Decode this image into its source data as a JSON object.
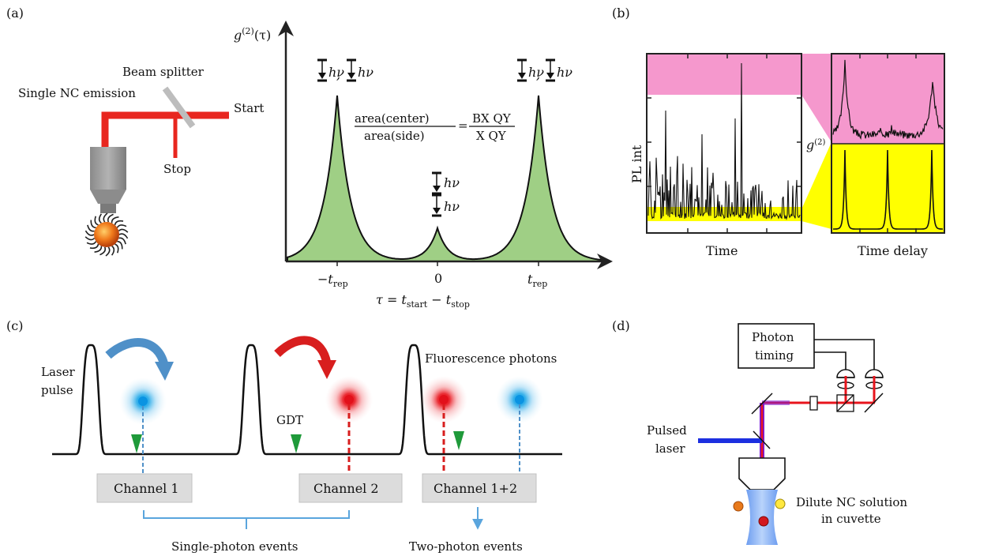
{
  "panel_labels": {
    "a": "(a)",
    "b": "(b)",
    "c": "(c)",
    "d": "(d)"
  },
  "panel_a": {
    "beam_splitter": "Beam splitter",
    "single_nc_emission": "Single NC emission",
    "start": "Start",
    "stop": "Stop",
    "y_axis_g": "g",
    "y_axis_sup": "(2)",
    "y_axis_tau": "(τ)",
    "photon_label": "hν",
    "ratio_num_left": "area(center)",
    "ratio_den_left": "area(side)",
    "ratio_num_right": "BX QY",
    "ratio_den_right": "X QY",
    "ratio_eq": "=",
    "tick_minus": "−t",
    "tick_zero": "0",
    "tick_plus": "t",
    "tick_sub": "rep",
    "x_axis_tau": "τ = t",
    "x_axis_sub1": "start",
    "x_axis_minus": " − t",
    "x_axis_sub2": "stop"
  },
  "panel_b": {
    "ylabel": "PL int",
    "xlabel_left": "Time",
    "xlabel_right": "Time delay",
    "g2_g": "g",
    "g2_sup": "(2)",
    "colors": {
      "pink": "#f598cd",
      "yellow": "#ffff00"
    }
  },
  "panel_c": {
    "laser_pulse_1": "Laser",
    "laser_pulse_2": "pulse",
    "gdt": "GDT",
    "fluorescence": "Fluorescence photons",
    "channel1": "Channel 1",
    "channel2": "Channel 2",
    "channel12": "Channel 1+2",
    "single_events": "Single-photon events",
    "two_events": "Two-photon events",
    "colors": {
      "blue": "#1ea7e8",
      "red": "#e8141c",
      "green": "#1f9a3a"
    }
  },
  "panel_d": {
    "photon_timing_1": "Photon",
    "photon_timing_2": "timing",
    "pulsed_1": "Pulsed",
    "pulsed_2": "laser",
    "dilute_1": "Dilute NC solution",
    "dilute_2": "in cuvette"
  }
}
